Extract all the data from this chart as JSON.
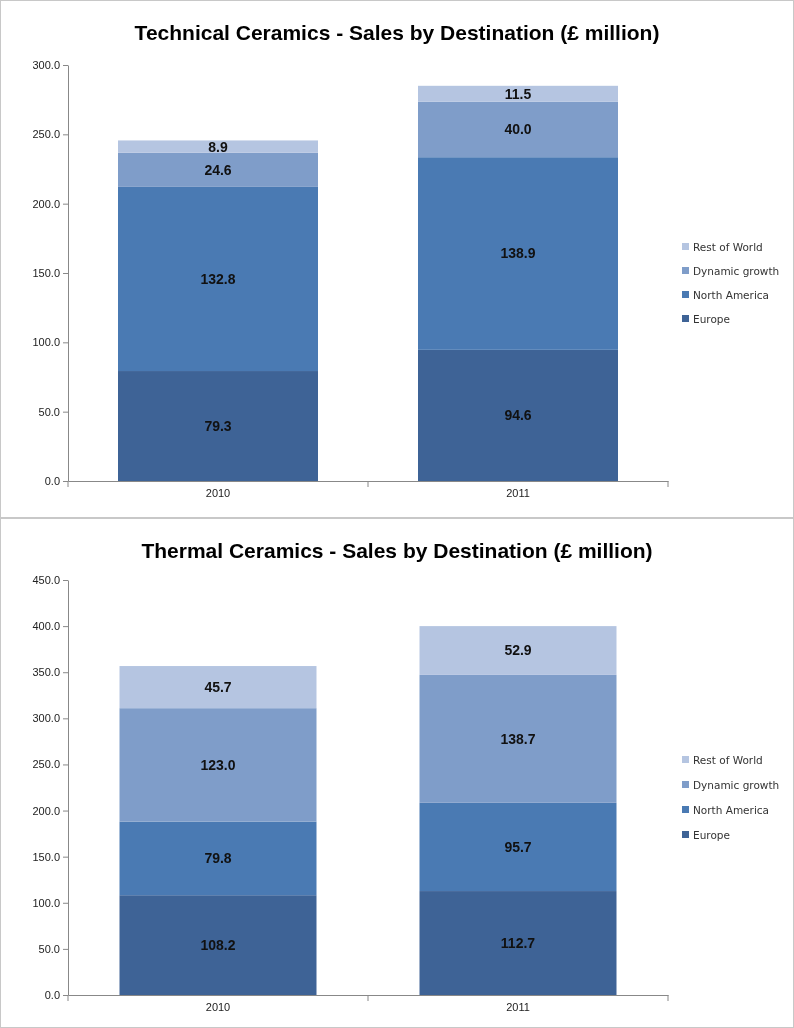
{
  "chart_data": [
    {
      "type": "bar",
      "title": "Technical Ceramics - Sales by Destination (£ million)",
      "categories": [
        "2010",
        "2011"
      ],
      "stacked": true,
      "legend": "right",
      "grid": false,
      "ylim": [
        0,
        300
      ],
      "yticks": [
        {
          "value": 0,
          "label": "0.0"
        },
        {
          "value": 50,
          "label": "50.0"
        },
        {
          "value": 100,
          "label": "100.0"
        },
        {
          "value": 150,
          "label": "150.0"
        },
        {
          "value": 200,
          "label": "200.0"
        },
        {
          "value": 250,
          "label": "250.0"
        },
        {
          "value": 300,
          "label": "300.0"
        }
      ],
      "series": [
        {
          "name": "Europe",
          "color": "#3e6396",
          "values": [
            79.3,
            94.6
          ],
          "value_labels": [
            "79.3",
            "94.6"
          ]
        },
        {
          "name": "North America",
          "color": "#4a7ab3",
          "values": [
            132.8,
            138.9
          ],
          "value_labels": [
            "132.8",
            "138.9"
          ]
        },
        {
          "name": "Dynamic growth",
          "color": "#7f9dc9",
          "values": [
            24.6,
            40.0
          ],
          "value_labels": [
            "24.6",
            "40.0"
          ]
        },
        {
          "name": "Rest of World",
          "color": "#b5c5e1",
          "values": [
            8.9,
            11.5
          ],
          "value_labels": [
            "8.9",
            "11.5"
          ]
        }
      ]
    },
    {
      "type": "bar",
      "title": "Thermal Ceramics - Sales by Destination (£ million)",
      "categories": [
        "2010",
        "2011"
      ],
      "stacked": true,
      "legend": "right",
      "grid": false,
      "ylim": [
        0,
        450
      ],
      "yticks": [
        {
          "value": 0,
          "label": "0.0"
        },
        {
          "value": 50,
          "label": "50.0"
        },
        {
          "value": 100,
          "label": "100.0"
        },
        {
          "value": 150,
          "label": "150.0"
        },
        {
          "value": 200,
          "label": "200.0"
        },
        {
          "value": 250,
          "label": "250.0"
        },
        {
          "value": 300,
          "label": "300.0"
        },
        {
          "value": 350,
          "label": "350.0"
        },
        {
          "value": 400,
          "label": "400.0"
        },
        {
          "value": 450,
          "label": "450.0"
        }
      ],
      "series": [
        {
          "name": "Europe",
          "color": "#3e6396",
          "values": [
            108.2,
            112.7
          ],
          "value_labels": [
            "108.2",
            "112.7"
          ]
        },
        {
          "name": "North America",
          "color": "#4a7ab3",
          "values": [
            79.8,
            95.7
          ],
          "value_labels": [
            "79.8",
            "95.7"
          ]
        },
        {
          "name": "Dynamic growth",
          "color": "#7f9dc9",
          "values": [
            123.0,
            138.7
          ],
          "value_labels": [
            "123.0",
            "138.7"
          ]
        },
        {
          "name": "Rest of World",
          "color": "#b5c5e1",
          "values": [
            45.7,
            52.9
          ],
          "value_labels": [
            "45.7",
            "52.9"
          ]
        }
      ]
    }
  ]
}
